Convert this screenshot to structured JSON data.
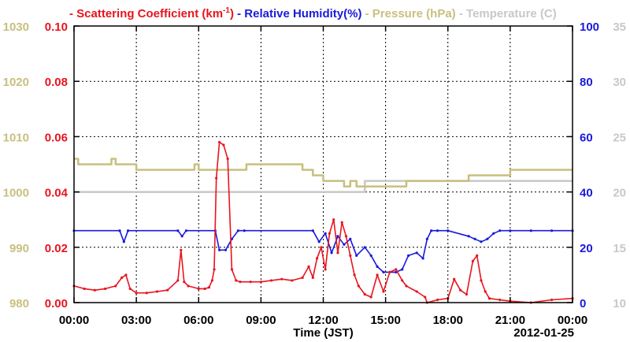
{
  "chart_data": {
    "type": "line",
    "title_legend": {
      "items": [
        {
          "dash": "-",
          "label": "Scattering Coefficient (km",
          "sup": "-1",
          "close": ")",
          "color": "#e8141e"
        },
        {
          "dash": "-",
          "label": "Relative Humidity(%)",
          "color": "#1a1adc"
        },
        {
          "dash": "-",
          "label": "Pressure (hPa)",
          "color": "#c8bf7e"
        },
        {
          "dash": "-",
          "label": "Temperature (C)",
          "color": "#c8c8c8"
        }
      ]
    },
    "xlabel": "Time (JST)",
    "date_label": "2012-01-25",
    "x_range_hours": [
      0,
      24
    ],
    "x_ticks": [
      "00:00",
      "03:00",
      "06:00",
      "09:00",
      "12:00",
      "15:00",
      "18:00",
      "21:00",
      "00:00"
    ],
    "grid": true,
    "axes": {
      "scattering": {
        "range": [
          0.0,
          0.1
        ],
        "ticks": [
          "0.00",
          "0.02",
          "0.04",
          "0.06",
          "0.08",
          "0.10"
        ],
        "color": "#e8141e",
        "side": "left-inner"
      },
      "pressure": {
        "range": [
          980,
          1030
        ],
        "ticks": [
          "980",
          "990",
          "1000",
          "1010",
          "1020",
          "1030"
        ],
        "color": "#c8bf7e",
        "side": "left-outer"
      },
      "humidity": {
        "range": [
          0,
          100
        ],
        "ticks": [
          "0",
          "20",
          "40",
          "60",
          "80",
          "100"
        ],
        "color": "#1a1adc",
        "side": "right-inner"
      },
      "temperature": {
        "range": [
          10,
          35
        ],
        "ticks": [
          "10",
          "15",
          "20",
          "25",
          "30",
          "35"
        ],
        "color": "#c8c8c8",
        "side": "right-outer"
      }
    },
    "series": [
      {
        "name": "Scattering Coefficient",
        "axis": "scattering",
        "color": "#e8141e",
        "x": [
          0.0,
          0.5,
          1.0,
          1.5,
          2.0,
          2.3,
          2.5,
          2.7,
          3.0,
          3.5,
          4.0,
          4.5,
          5.0,
          5.15,
          5.3,
          5.5,
          6.0,
          6.3,
          6.5,
          6.65,
          6.75,
          6.85,
          7.0,
          7.2,
          7.4,
          7.6,
          7.8,
          8.0,
          8.5,
          9.0,
          9.5,
          10.0,
          10.5,
          11.0,
          11.3,
          11.5,
          11.7,
          11.9,
          12.1,
          12.3,
          12.5,
          12.7,
          12.9,
          13.1,
          13.3,
          13.5,
          13.7,
          14.0,
          14.3,
          14.6,
          14.9,
          15.2,
          15.5,
          15.8,
          16.0,
          16.5,
          16.9,
          17.0,
          17.5,
          18.0,
          18.3,
          18.6,
          18.9,
          19.2,
          19.4,
          19.6,
          19.8,
          20.0,
          20.5,
          21.0,
          22.0,
          23.0,
          24.0
        ],
        "values": [
          0.006,
          0.005,
          0.0045,
          0.005,
          0.006,
          0.009,
          0.01,
          0.005,
          0.0035,
          0.0035,
          0.004,
          0.0045,
          0.008,
          0.019,
          0.0075,
          0.006,
          0.005,
          0.005,
          0.0055,
          0.008,
          0.012,
          0.045,
          0.058,
          0.057,
          0.052,
          0.012,
          0.008,
          0.0075,
          0.0075,
          0.0075,
          0.008,
          0.0085,
          0.008,
          0.009,
          0.013,
          0.009,
          0.016,
          0.02,
          0.012,
          0.025,
          0.03,
          0.018,
          0.029,
          0.024,
          0.017,
          0.01,
          0.006,
          0.003,
          0.002,
          0.01,
          0.004,
          0.011,
          0.012,
          0.008,
          0.006,
          0.004,
          0.002,
          0.0,
          0.001,
          0.0015,
          0.0085,
          0.0045,
          0.003,
          0.015,
          0.017,
          0.008,
          0.004,
          0.0015,
          0.001,
          0.0005,
          0.0,
          0.001,
          0.0015
        ]
      },
      {
        "name": "Relative Humidity(%)",
        "axis": "humidity",
        "color": "#1a1adc",
        "x": [
          0.0,
          2.2,
          2.4,
          2.6,
          5.0,
          5.2,
          5.4,
          6.8,
          7.0,
          7.3,
          7.6,
          7.9,
          8.2,
          11.5,
          11.8,
          12.1,
          12.4,
          12.7,
          13.0,
          13.3,
          13.6,
          14.0,
          14.3,
          14.6,
          14.9,
          15.2,
          15.5,
          15.8,
          16.1,
          16.5,
          16.8,
          17.0,
          17.2,
          17.5,
          18.0,
          19.0,
          19.3,
          19.6,
          19.9,
          20.2,
          20.5,
          21.0,
          22.0,
          23.0,
          24.0
        ],
        "values": [
          26,
          26,
          22,
          26,
          26,
          24,
          26,
          26,
          19,
          19,
          23,
          26,
          26,
          26,
          22,
          25,
          18,
          24,
          21,
          23,
          17,
          20,
          17,
          13,
          11,
          11,
          11,
          12,
          17,
          18,
          16,
          23,
          26,
          26,
          26,
          24,
          23,
          22,
          23,
          25,
          26,
          26,
          26,
          26,
          26
        ]
      },
      {
        "name": "Pressure (hPa)",
        "axis": "pressure",
        "color": "#c8bf7e",
        "x": [
          0.0,
          0.2,
          1.5,
          1.8,
          2.0,
          2.5,
          3.0,
          5.5,
          5.8,
          6.0,
          8.0,
          8.3,
          8.5,
          10.5,
          11.0,
          11.5,
          12.0,
          12.5,
          13.0,
          13.3,
          13.6,
          14.0,
          15.0,
          16.0,
          17.0,
          18.0,
          19.0,
          20.0,
          21.0,
          22.0,
          23.0,
          24.0
        ],
        "values": [
          1006,
          1005,
          1005,
          1006,
          1005,
          1005,
          1004,
          1004,
          1005,
          1004,
          1004,
          1005,
          1005,
          1005,
          1004,
          1003,
          1002,
          1002,
          1001,
          1002,
          1001,
          1001,
          1001,
          1002,
          1002,
          1002,
          1003,
          1003,
          1004,
          1004,
          1004,
          1004
        ]
      },
      {
        "name": "Temperature (C)",
        "axis": "temperature",
        "color": "#c8c8c8",
        "x": [
          0.0,
          6.0,
          12.0,
          13.5,
          14.0,
          18.0,
          24.0
        ],
        "values": [
          20.0,
          20.0,
          20.0,
          20.0,
          21.0,
          21.0,
          21.0
        ]
      }
    ]
  }
}
